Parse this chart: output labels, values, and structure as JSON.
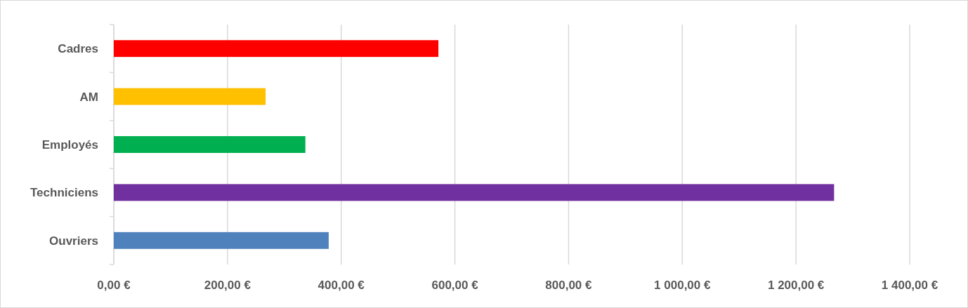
{
  "chart_data": {
    "type": "bar",
    "orientation": "horizontal",
    "categories": [
      "Cadres",
      "AM",
      "Employés",
      "Techniciens",
      "Ouvriers"
    ],
    "values": [
      571,
      267,
      337,
      1267,
      378
    ],
    "colors": [
      "#ff0000",
      "#ffc000",
      "#00b050",
      "#7030a0",
      "#4f81bd"
    ],
    "xlim": [
      0,
      1400
    ],
    "xticks": [
      {
        "value": 0,
        "label": "0,00 €"
      },
      {
        "value": 200,
        "label": "200,00 €"
      },
      {
        "value": 400,
        "label": "400,00 €"
      },
      {
        "value": 600,
        "label": "600,00 €"
      },
      {
        "value": 800,
        "label": "800,00 €"
      },
      {
        "value": 1000,
        "label": "1 000,00 €"
      },
      {
        "value": 1200,
        "label": "1 200,00 €"
      },
      {
        "value": 1400,
        "label": "1 400,00 €"
      }
    ],
    "grid": "x"
  }
}
